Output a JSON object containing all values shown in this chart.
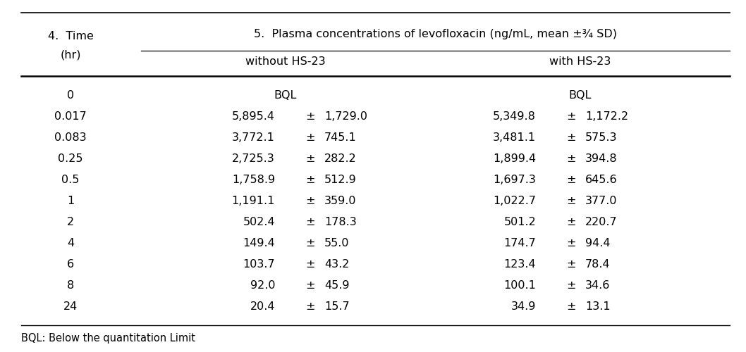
{
  "times": [
    "0",
    "0.017",
    "0.083",
    "0.25",
    "0.5",
    "1",
    "2",
    "4",
    "6",
    "8",
    "24"
  ],
  "without_mean": [
    "BQL",
    "5,895.4",
    "3,772.1",
    "2,725.3",
    "1,758.9",
    "1,191.1",
    "502.4",
    "149.4",
    "103.7",
    "92.0",
    "20.4"
  ],
  "without_sd": [
    "",
    "1,729.0",
    "745.1",
    "282.2",
    "512.9",
    "359.0",
    "178.3",
    "55.0",
    "43.2",
    "45.9",
    "15.7"
  ],
  "with_mean": [
    "BQL",
    "5,349.8",
    "3,481.1",
    "1,899.4",
    "1,697.3",
    "1,022.7",
    "501.2",
    "174.7",
    "123.4",
    "100.1",
    "34.9"
  ],
  "with_sd": [
    "",
    "1,172.2",
    "575.3",
    "394.8",
    "645.6",
    "377.0",
    "220.7",
    "94.4",
    "78.4",
    "34.6",
    "13.1"
  ],
  "footnote": "BQL: Below the quantitation Limit",
  "bg_color": "#ffffff",
  "text_color": "#000000",
  "line_color": "#000000",
  "header1": "5.  Plasma concentrations of levofloxacin (ng/mL, mean ±¾ SD)",
  "subhead1": "without HS-23",
  "subhead2": "with HS-23",
  "col1_line1": "4.  Time",
  "col1_line2": "(hr)",
  "font_size": 11.5,
  "footnote_font_size": 10.5
}
